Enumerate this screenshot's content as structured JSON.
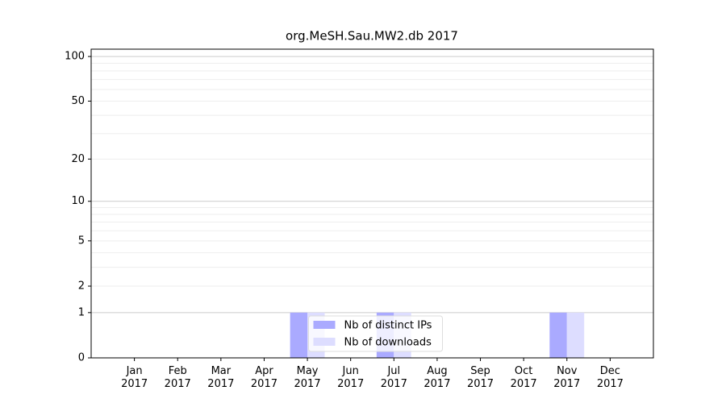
{
  "chart_data": {
    "type": "bar",
    "title": "org.MeSH.Sau.MW2.db 2017",
    "categories": [
      "Jan\n2017",
      "Feb\n2017",
      "Mar\n2017",
      "Apr\n2017",
      "May\n2017",
      "Jun\n2017",
      "Jul\n2017",
      "Aug\n2017",
      "Sep\n2017",
      "Oct\n2017",
      "Nov\n2017",
      "Dec\n2017"
    ],
    "series": [
      {
        "name": "Nb of distinct IPs",
        "color": "#aaaaff",
        "values": [
          0,
          0,
          0,
          0,
          1,
          0,
          1,
          0,
          0,
          0,
          1,
          0
        ]
      },
      {
        "name": "Nb of downloads",
        "color": "#ddddff",
        "values": [
          0,
          0,
          0,
          0,
          1,
          0,
          1,
          0,
          0,
          0,
          1,
          0
        ]
      }
    ],
    "yscale": "log1p",
    "ylim": [
      0,
      112
    ],
    "yticks": [
      0,
      1,
      2,
      5,
      10,
      20,
      50,
      100
    ],
    "grid_major": [
      1,
      10,
      100
    ],
    "grid_minor": [
      2,
      3,
      4,
      5,
      6,
      7,
      8,
      9,
      20,
      30,
      40,
      50,
      60,
      70,
      80,
      90
    ],
    "grid": true,
    "legend": "lower center"
  }
}
